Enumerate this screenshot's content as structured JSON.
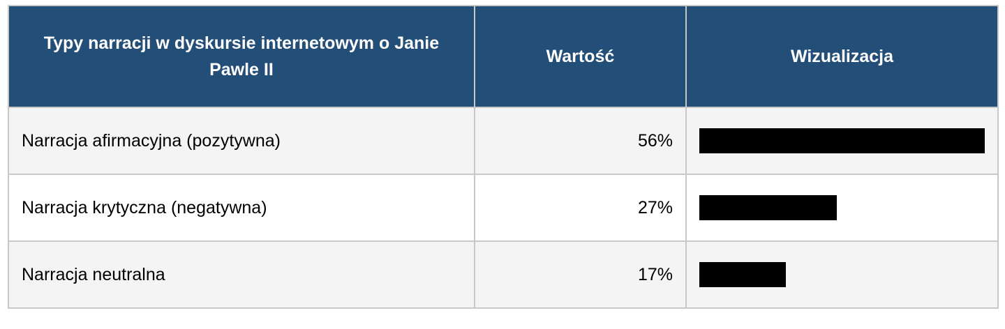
{
  "table": {
    "headers": [
      "Typy narracji w dyskursie internetowym o Janie Pawle II",
      "Wartość",
      "Wizualizacja"
    ],
    "rows": [
      {
        "label": "Narracja afirmacyjna (pozytywna)",
        "value_text": "56%",
        "value": 56
      },
      {
        "label": "Narracja krytyczna (negatywna)",
        "value_text": "27%",
        "value": 27
      },
      {
        "label": "Narracja neutralna",
        "value_text": "17%",
        "value": 17
      }
    ]
  },
  "colors": {
    "header_bg": "#224e78",
    "bar": "#000000",
    "row_alt": "#f4f4f4"
  }
}
